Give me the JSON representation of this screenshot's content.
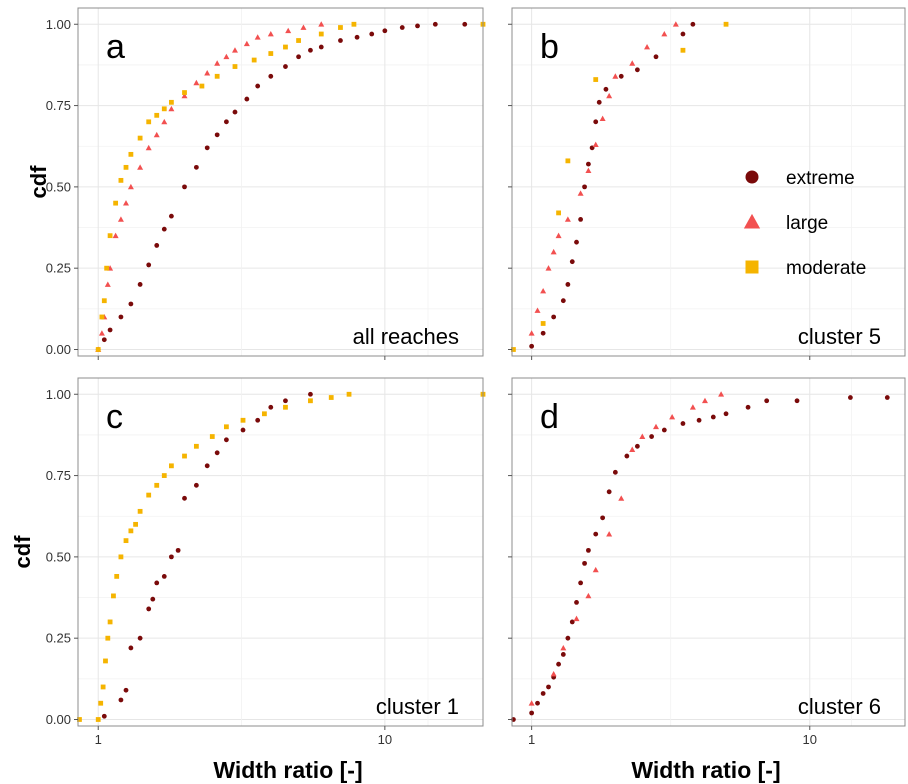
{
  "figure": {
    "ylabel": "cdf",
    "xlabel": "Width ratio [-]",
    "legend": {
      "position": "right, inside panel b",
      "items": [
        {
          "name": "extreme",
          "shape": "circle",
          "color": "#7a0a0a"
        },
        {
          "name": "large",
          "shape": "triangle",
          "color": "#f25050"
        },
        {
          "name": "moderate",
          "shape": "square",
          "color": "#f5b400"
        }
      ]
    }
  },
  "chart_data": [
    {
      "panel": "a",
      "type": "scatter",
      "annotation": "all reaches",
      "x_scale": "log",
      "xlim": [
        0.85,
        22
      ],
      "ylim": [
        -0.02,
        1.05
      ],
      "x_ticks": [
        1,
        10
      ],
      "y_ticks": [
        "0.00",
        "0.25",
        "0.50",
        "0.75",
        "1.00"
      ],
      "show_x_tick_labels": false,
      "show_y_tick_labels": true,
      "grid": true,
      "series": [
        {
          "name": "extreme",
          "points": [
            [
              1.0,
              0.0
            ],
            [
              1.05,
              0.03
            ],
            [
              1.1,
              0.06
            ],
            [
              1.2,
              0.1
            ],
            [
              1.3,
              0.14
            ],
            [
              1.4,
              0.2
            ],
            [
              1.5,
              0.26
            ],
            [
              1.6,
              0.32
            ],
            [
              1.7,
              0.37
            ],
            [
              1.8,
              0.41
            ],
            [
              2.0,
              0.5
            ],
            [
              2.2,
              0.56
            ],
            [
              2.4,
              0.62
            ],
            [
              2.6,
              0.66
            ],
            [
              2.8,
              0.7
            ],
            [
              3.0,
              0.73
            ],
            [
              3.3,
              0.77
            ],
            [
              3.6,
              0.81
            ],
            [
              4.0,
              0.84
            ],
            [
              4.5,
              0.87
            ],
            [
              5.0,
              0.9
            ],
            [
              5.5,
              0.92
            ],
            [
              6.0,
              0.93
            ],
            [
              7.0,
              0.95
            ],
            [
              8.0,
              0.96
            ],
            [
              9.0,
              0.97
            ],
            [
              10.0,
              0.98
            ],
            [
              11.5,
              0.99
            ],
            [
              13.0,
              0.995
            ],
            [
              15.0,
              1.0
            ],
            [
              19.0,
              1.0
            ]
          ]
        },
        {
          "name": "large",
          "points": [
            [
              1.0,
              0.0
            ],
            [
              1.03,
              0.05
            ],
            [
              1.05,
              0.1
            ],
            [
              1.08,
              0.2
            ],
            [
              1.1,
              0.25
            ],
            [
              1.15,
              0.35
            ],
            [
              1.2,
              0.4
            ],
            [
              1.25,
              0.45
            ],
            [
              1.3,
              0.5
            ],
            [
              1.4,
              0.56
            ],
            [
              1.5,
              0.62
            ],
            [
              1.6,
              0.66
            ],
            [
              1.7,
              0.7
            ],
            [
              1.8,
              0.74
            ],
            [
              2.0,
              0.78
            ],
            [
              2.2,
              0.82
            ],
            [
              2.4,
              0.85
            ],
            [
              2.6,
              0.88
            ],
            [
              2.8,
              0.9
            ],
            [
              3.0,
              0.92
            ],
            [
              3.3,
              0.94
            ],
            [
              3.6,
              0.96
            ],
            [
              4.0,
              0.97
            ],
            [
              4.6,
              0.98
            ],
            [
              5.2,
              0.99
            ],
            [
              6.0,
              1.0
            ]
          ]
        },
        {
          "name": "moderate",
          "points": [
            [
              1.0,
              0.0
            ],
            [
              1.03,
              0.1
            ],
            [
              1.05,
              0.15
            ],
            [
              1.07,
              0.25
            ],
            [
              1.1,
              0.35
            ],
            [
              1.15,
              0.45
            ],
            [
              1.2,
              0.52
            ],
            [
              1.25,
              0.56
            ],
            [
              1.3,
              0.6
            ],
            [
              1.4,
              0.65
            ],
            [
              1.5,
              0.7
            ],
            [
              1.6,
              0.72
            ],
            [
              1.7,
              0.74
            ],
            [
              1.8,
              0.76
            ],
            [
              2.0,
              0.79
            ],
            [
              2.3,
              0.81
            ],
            [
              2.6,
              0.84
            ],
            [
              3.0,
              0.87
            ],
            [
              3.5,
              0.89
            ],
            [
              4.0,
              0.91
            ],
            [
              4.5,
              0.93
            ],
            [
              5.0,
              0.95
            ],
            [
              6.0,
              0.97
            ],
            [
              7.0,
              0.99
            ],
            [
              7.8,
              1.0
            ],
            [
              22,
              1.0
            ]
          ]
        }
      ]
    },
    {
      "panel": "b",
      "type": "scatter",
      "annotation": "cluster 5",
      "x_scale": "log",
      "xlim": [
        0.85,
        22
      ],
      "ylim": [
        -0.02,
        1.05
      ],
      "x_ticks": [
        1,
        10
      ],
      "y_ticks": [
        "0.00",
        "0.25",
        "0.50",
        "0.75",
        "1.00"
      ],
      "show_x_tick_labels": false,
      "show_y_tick_labels": false,
      "grid": true,
      "series": [
        {
          "name": "extreme",
          "points": [
            [
              1.0,
              0.01
            ],
            [
              1.1,
              0.05
            ],
            [
              1.2,
              0.1
            ],
            [
              1.3,
              0.15
            ],
            [
              1.35,
              0.2
            ],
            [
              1.4,
              0.27
            ],
            [
              1.45,
              0.33
            ],
            [
              1.5,
              0.4
            ],
            [
              1.55,
              0.5
            ],
            [
              1.6,
              0.57
            ],
            [
              1.65,
              0.62
            ],
            [
              1.7,
              0.7
            ],
            [
              1.75,
              0.76
            ],
            [
              1.85,
              0.8
            ],
            [
              2.1,
              0.84
            ],
            [
              2.4,
              0.86
            ],
            [
              2.8,
              0.9
            ],
            [
              3.5,
              0.97
            ],
            [
              3.8,
              1.0
            ]
          ]
        },
        {
          "name": "large",
          "points": [
            [
              1.0,
              0.05
            ],
            [
              1.05,
              0.12
            ],
            [
              1.1,
              0.18
            ],
            [
              1.15,
              0.25
            ],
            [
              1.2,
              0.3
            ],
            [
              1.25,
              0.35
            ],
            [
              1.35,
              0.4
            ],
            [
              1.5,
              0.48
            ],
            [
              1.6,
              0.55
            ],
            [
              1.7,
              0.63
            ],
            [
              1.8,
              0.71
            ],
            [
              1.9,
              0.78
            ],
            [
              2.0,
              0.84
            ],
            [
              2.3,
              0.88
            ],
            [
              2.6,
              0.93
            ],
            [
              3.0,
              0.97
            ],
            [
              3.3,
              1.0
            ]
          ]
        },
        {
          "name": "moderate",
          "points": [
            [
              0.86,
              0.0
            ],
            [
              1.1,
              0.08
            ],
            [
              1.25,
              0.42
            ],
            [
              1.35,
              0.58
            ],
            [
              1.7,
              0.83
            ],
            [
              3.5,
              0.92
            ],
            [
              5.0,
              1.0
            ]
          ]
        }
      ]
    },
    {
      "panel": "c",
      "type": "scatter",
      "annotation": "cluster 1",
      "x_scale": "log",
      "xlim": [
        0.85,
        22
      ],
      "ylim": [
        -0.02,
        1.05
      ],
      "x_ticks": [
        1,
        10
      ],
      "x_tick_labels": [
        "1",
        "10"
      ],
      "y_ticks": [
        "0.00",
        "0.25",
        "0.50",
        "0.75",
        "1.00"
      ],
      "show_x_tick_labels": true,
      "show_y_tick_labels": true,
      "grid": true,
      "series": [
        {
          "name": "extreme",
          "points": [
            [
              1.05,
              0.01
            ],
            [
              1.2,
              0.06
            ],
            [
              1.25,
              0.09
            ],
            [
              1.3,
              0.22
            ],
            [
              1.4,
              0.25
            ],
            [
              1.5,
              0.34
            ],
            [
              1.55,
              0.37
            ],
            [
              1.6,
              0.42
            ],
            [
              1.7,
              0.44
            ],
            [
              1.8,
              0.5
            ],
            [
              1.9,
              0.52
            ],
            [
              2.0,
              0.68
            ],
            [
              2.2,
              0.72
            ],
            [
              2.4,
              0.78
            ],
            [
              2.6,
              0.82
            ],
            [
              2.8,
              0.86
            ],
            [
              3.2,
              0.89
            ],
            [
              3.6,
              0.92
            ],
            [
              4.0,
              0.96
            ],
            [
              4.5,
              0.98
            ],
            [
              5.5,
              1.0
            ]
          ]
        },
        {
          "name": "moderate",
          "points": [
            [
              0.86,
              0.0
            ],
            [
              1.0,
              0.0
            ],
            [
              1.02,
              0.05
            ],
            [
              1.04,
              0.1
            ],
            [
              1.06,
              0.18
            ],
            [
              1.08,
              0.25
            ],
            [
              1.1,
              0.3
            ],
            [
              1.13,
              0.38
            ],
            [
              1.16,
              0.44
            ],
            [
              1.2,
              0.5
            ],
            [
              1.25,
              0.55
            ],
            [
              1.3,
              0.58
            ],
            [
              1.35,
              0.6
            ],
            [
              1.4,
              0.64
            ],
            [
              1.5,
              0.69
            ],
            [
              1.6,
              0.72
            ],
            [
              1.7,
              0.75
            ],
            [
              1.8,
              0.78
            ],
            [
              2.0,
              0.81
            ],
            [
              2.2,
              0.84
            ],
            [
              2.5,
              0.87
            ],
            [
              2.8,
              0.9
            ],
            [
              3.2,
              0.92
            ],
            [
              3.8,
              0.94
            ],
            [
              4.5,
              0.96
            ],
            [
              5.5,
              0.98
            ],
            [
              6.5,
              0.99
            ],
            [
              7.5,
              1.0
            ],
            [
              22,
              1.0
            ]
          ]
        }
      ]
    },
    {
      "panel": "d",
      "type": "scatter",
      "annotation": "cluster 6",
      "x_scale": "log",
      "xlim": [
        0.85,
        22
      ],
      "ylim": [
        -0.02,
        1.05
      ],
      "x_ticks": [
        1,
        10
      ],
      "x_tick_labels": [
        "1",
        "10"
      ],
      "y_ticks": [
        "0.00",
        "0.25",
        "0.50",
        "0.75",
        "1.00"
      ],
      "show_x_tick_labels": true,
      "show_y_tick_labels": false,
      "grid": true,
      "series": [
        {
          "name": "extreme",
          "points": [
            [
              0.86,
              0.0
            ],
            [
              1.0,
              0.02
            ],
            [
              1.05,
              0.05
            ],
            [
              1.1,
              0.08
            ],
            [
              1.15,
              0.1
            ],
            [
              1.2,
              0.13
            ],
            [
              1.25,
              0.17
            ],
            [
              1.3,
              0.2
            ],
            [
              1.35,
              0.25
            ],
            [
              1.4,
              0.3
            ],
            [
              1.45,
              0.36
            ],
            [
              1.5,
              0.42
            ],
            [
              1.55,
              0.48
            ],
            [
              1.6,
              0.52
            ],
            [
              1.7,
              0.57
            ],
            [
              1.8,
              0.62
            ],
            [
              1.9,
              0.7
            ],
            [
              2.0,
              0.76
            ],
            [
              2.2,
              0.81
            ],
            [
              2.4,
              0.84
            ],
            [
              2.7,
              0.87
            ],
            [
              3.0,
              0.89
            ],
            [
              3.5,
              0.91
            ],
            [
              4.0,
              0.92
            ],
            [
              4.5,
              0.93
            ],
            [
              5.0,
              0.94
            ],
            [
              6.0,
              0.96
            ],
            [
              7.0,
              0.98
            ],
            [
              9.0,
              0.98
            ],
            [
              14.0,
              0.99
            ],
            [
              19.0,
              0.99
            ]
          ]
        },
        {
          "name": "large",
          "points": [
            [
              1.0,
              0.05
            ],
            [
              1.2,
              0.14
            ],
            [
              1.3,
              0.22
            ],
            [
              1.45,
              0.31
            ],
            [
              1.6,
              0.38
            ],
            [
              1.7,
              0.46
            ],
            [
              1.9,
              0.57
            ],
            [
              2.1,
              0.68
            ],
            [
              2.3,
              0.83
            ],
            [
              2.5,
              0.87
            ],
            [
              2.8,
              0.9
            ],
            [
              3.2,
              0.93
            ],
            [
              3.8,
              0.96
            ],
            [
              4.2,
              0.98
            ],
            [
              4.8,
              1.0
            ]
          ]
        }
      ]
    }
  ]
}
